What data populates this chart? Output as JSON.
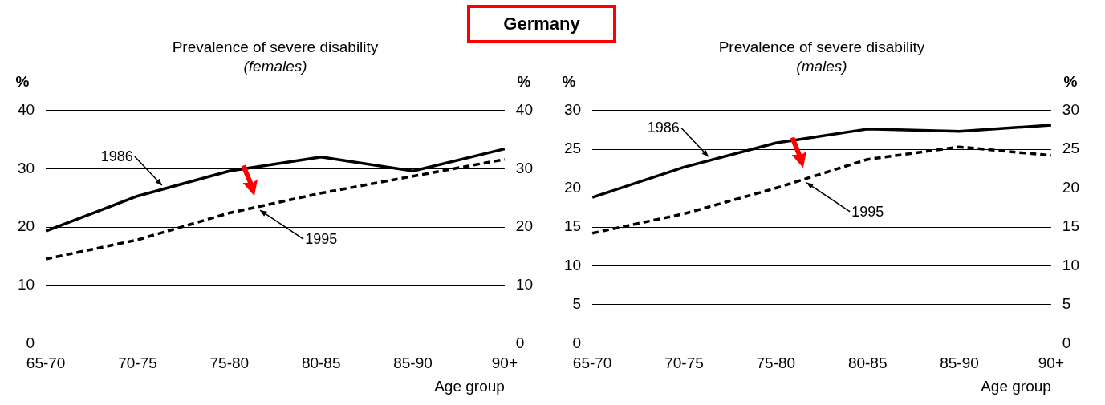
{
  "chart_data": [
    {
      "type": "line",
      "title": "Prevalence of severe disability",
      "subtitle": "(females)",
      "annotations": [
        "Germany"
      ],
      "xlabel": "Age group",
      "ylabel": "%",
      "y2label": "%",
      "categories": [
        "65-70",
        "70-75",
        "75-80",
        "80-85",
        "85-90",
        "90+"
      ],
      "series": [
        {
          "name": "1986",
          "color": "#000000",
          "line_style": "solid",
          "values": [
            19.3,
            25.3,
            29.6,
            32,
            29.6,
            33.4
          ]
        },
        {
          "name": "1995",
          "color": "#000000",
          "line_style": "dashed",
          "values": [
            14.5,
            17.8,
            22.4,
            25.8,
            28.7,
            31.6
          ]
        }
      ],
      "ylim": [
        0,
        40
      ],
      "yticks": [
        0,
        10,
        20,
        30,
        40
      ],
      "y2lim": [
        0,
        40
      ],
      "y2ticks": [
        0,
        10,
        20,
        30,
        40
      ],
      "grid": "y",
      "legend": false,
      "marker": "none"
    },
    {
      "type": "line",
      "title": "Prevalence of severe disability",
      "subtitle": "(males)",
      "xlabel": "Age group",
      "ylabel": "%",
      "y2label": "%",
      "categories": [
        "65-70",
        "70-75",
        "75-80",
        "80-85",
        "85-90",
        "90+"
      ],
      "series": [
        {
          "name": "1986",
          "color": "#000000",
          "line_style": "solid",
          "values": [
            18.8,
            22.7,
            25.8,
            27.6,
            27.3,
            28.1
          ]
        },
        {
          "name": "1995",
          "color": "#000000",
          "line_style": "dashed",
          "values": [
            14.2,
            16.7,
            20,
            23.7,
            25.3,
            24.2
          ]
        }
      ],
      "ylim": [
        0,
        30
      ],
      "yticks": [
        0,
        5,
        10,
        15,
        20,
        25,
        30
      ],
      "y2lim": [
        0,
        30
      ],
      "y2ticks": [
        0,
        5,
        10,
        15,
        20,
        25,
        30
      ],
      "grid": "y",
      "legend": false,
      "marker": "none"
    }
  ]
}
